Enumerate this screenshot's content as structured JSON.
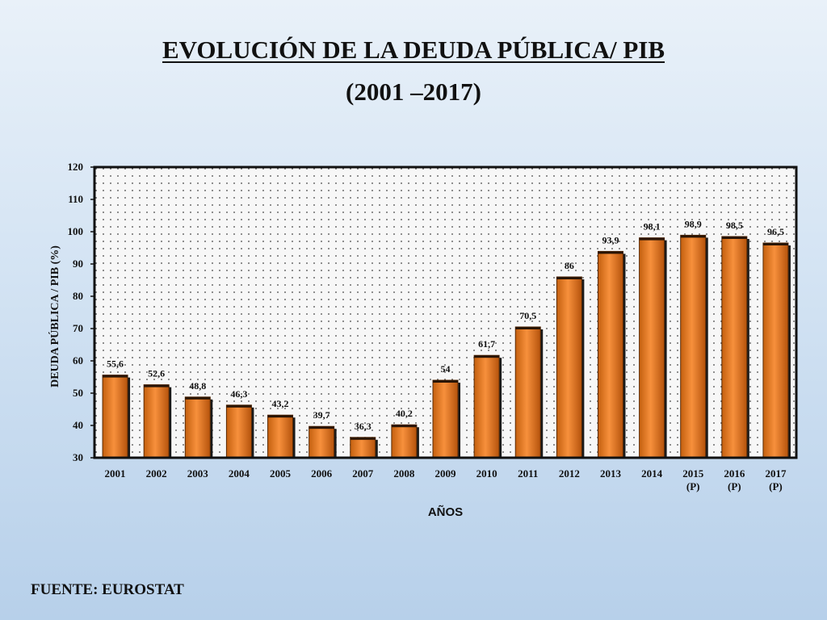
{
  "header": {
    "title": "EVOLUCIÓN DE LA DEUDA PÚBLICA/ PIB",
    "subtitle": "(2001 –2017)"
  },
  "footer": {
    "source": "FUENTE: EUROSTAT"
  },
  "colors": {
    "bar_light": "#f58a3a",
    "bar_dark": "#b9560f",
    "plot_bg": "#f6f6f6",
    "frame": "#111111"
  },
  "chart_data": {
    "type": "bar",
    "title": "EVOLUCIÓN DE LA DEUDA PÚBLICA/ PIB",
    "subtitle": "(2001 –2017)",
    "xlabel": "AÑOS",
    "ylabel": "DEUDA PÚBLICA / PIB (%)",
    "ylim": [
      30,
      120
    ],
    "yticks": [
      30,
      40,
      50,
      60,
      70,
      80,
      90,
      100,
      110,
      120
    ],
    "grid": "dotted background",
    "categories": [
      "2001",
      "2002",
      "2003",
      "2004",
      "2005",
      "2006",
      "2007",
      "2008",
      "2009",
      "2010",
      "2011",
      "2012",
      "2013",
      "2014",
      "2015\n(P)",
      "2016\n(P)",
      "2017\n(P)"
    ],
    "values": [
      55.6,
      52.6,
      48.8,
      46.3,
      43.2,
      39.7,
      36.3,
      40.2,
      54,
      61.7,
      70.5,
      86,
      93.9,
      98.1,
      98.9,
      98.5,
      96.5
    ],
    "data_labels": [
      "55,6",
      "52,6",
      "48,8",
      "46,3",
      "43,2",
      "39,7",
      "36,3",
      "40,2",
      "54",
      "61,7",
      "70,5",
      "86",
      "93,9",
      "98,1",
      "98,9",
      "98,5",
      "96,5"
    ]
  }
}
